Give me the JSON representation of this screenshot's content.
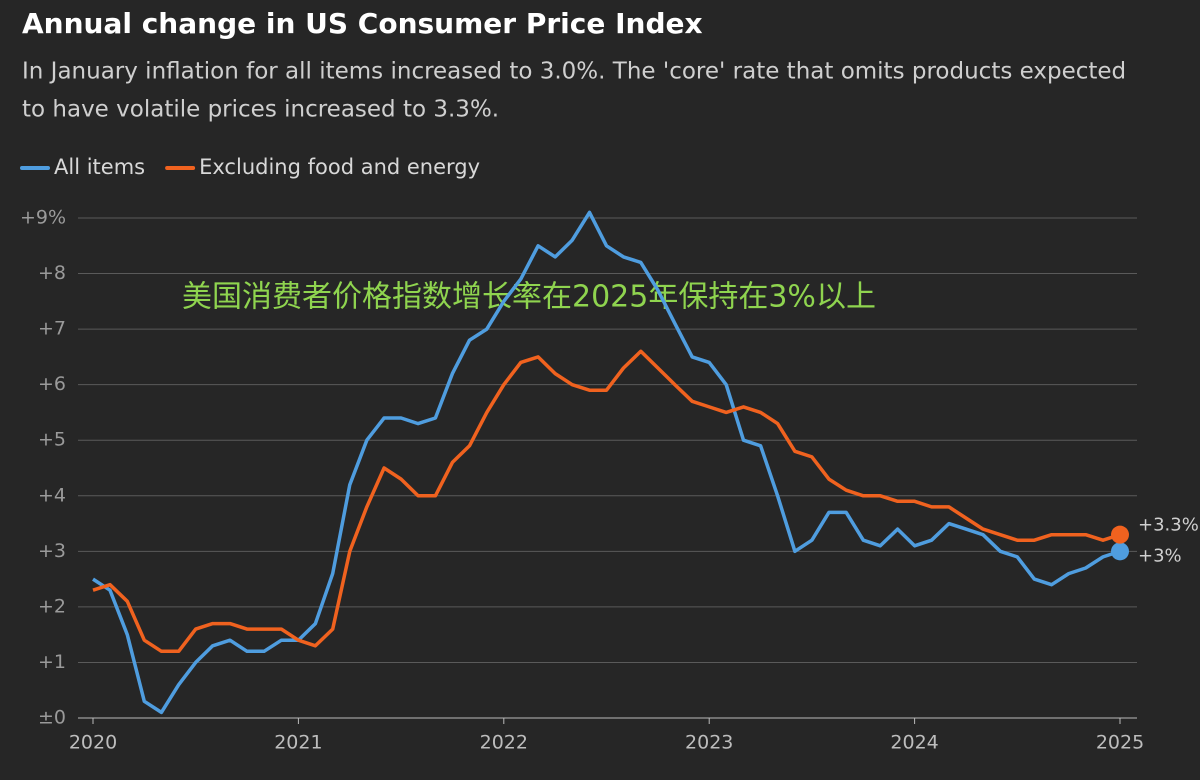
{
  "chart_data": {
    "type": "line",
    "title": "Annual change in US Consumer Price Index",
    "subtitle_lines": [
      "In January inflation for all items increased to 3.0%. The 'core' rate that omits products expected",
      "to have volatile prices increased to 3.3%."
    ],
    "annotation": "美国消费者价格指数增长率在2025年保持在3%以上",
    "annotation_color": "#8fd44f",
    "x": [
      2020,
      2020.083,
      2020.167,
      2020.25,
      2020.333,
      2020.417,
      2020.5,
      2020.583,
      2020.667,
      2020.75,
      2020.833,
      2020.917,
      2021,
      2021.083,
      2021.167,
      2021.25,
      2021.333,
      2021.417,
      2021.5,
      2021.583,
      2021.667,
      2021.75,
      2021.833,
      2021.917,
      2022,
      2022.083,
      2022.167,
      2022.25,
      2022.333,
      2022.417,
      2022.5,
      2022.583,
      2022.667,
      2022.75,
      2022.833,
      2022.917,
      2023,
      2023.083,
      2023.167,
      2023.25,
      2023.333,
      2023.417,
      2023.5,
      2023.583,
      2023.667,
      2023.75,
      2023.833,
      2023.917,
      2024,
      2024.083,
      2024.167,
      2024.25,
      2024.333,
      2024.417,
      2024.5,
      2024.583,
      2024.667,
      2024.75,
      2024.833,
      2024.917,
      2025
    ],
    "series": [
      {
        "name": "All items",
        "color": "#4f9ddf",
        "end_label": "+3%",
        "values": [
          2.5,
          2.3,
          1.5,
          0.3,
          0.1,
          0.6,
          1.0,
          1.3,
          1.4,
          1.2,
          1.2,
          1.4,
          1.4,
          1.7,
          2.6,
          4.2,
          5.0,
          5.4,
          5.4,
          5.3,
          5.4,
          6.2,
          6.8,
          7.0,
          7.5,
          7.9,
          8.5,
          8.3,
          8.6,
          9.1,
          8.5,
          8.3,
          8.2,
          7.7,
          7.1,
          6.5,
          6.4,
          6.0,
          5.0,
          4.9,
          4.0,
          3.0,
          3.2,
          3.7,
          3.7,
          3.2,
          3.1,
          3.4,
          3.1,
          3.2,
          3.5,
          3.4,
          3.3,
          3.0,
          2.9,
          2.5,
          2.4,
          2.6,
          2.7,
          2.9,
          3.0
        ]
      },
      {
        "name": "Excluding food and energy",
        "color": "#f0621f",
        "end_label": "+3.3%",
        "values": [
          2.3,
          2.4,
          2.1,
          1.4,
          1.2,
          1.2,
          1.6,
          1.7,
          1.7,
          1.6,
          1.6,
          1.6,
          1.4,
          1.3,
          1.6,
          3.0,
          3.8,
          4.5,
          4.3,
          4.0,
          4.0,
          4.6,
          4.9,
          5.5,
          6.0,
          6.4,
          6.5,
          6.2,
          6.0,
          5.9,
          5.9,
          6.3,
          6.6,
          6.3,
          6.0,
          5.7,
          5.6,
          5.5,
          5.6,
          5.5,
          5.3,
          4.8,
          4.7,
          4.3,
          4.1,
          4.0,
          4.0,
          3.9,
          3.9,
          3.8,
          3.8,
          3.6,
          3.4,
          3.3,
          3.2,
          3.2,
          3.3,
          3.3,
          3.3,
          3.2,
          3.3
        ]
      }
    ],
    "xlim": [
      2020,
      2025
    ],
    "xticks": [
      2020,
      2021,
      2022,
      2023,
      2024,
      2025
    ],
    "ylim": [
      0,
      9
    ],
    "yticks": [
      {
        "value": 0,
        "label": "±0"
      },
      {
        "value": 1,
        "label": "+1"
      },
      {
        "value": 2,
        "label": "+2"
      },
      {
        "value": 3,
        "label": "+3"
      },
      {
        "value": 4,
        "label": "+4"
      },
      {
        "value": 5,
        "label": "+5"
      },
      {
        "value": 6,
        "label": "+6"
      },
      {
        "value": 7,
        "label": "+7"
      },
      {
        "value": 8,
        "label": "+8"
      },
      {
        "value": 9,
        "label": "+9%"
      }
    ],
    "grid": true
  }
}
